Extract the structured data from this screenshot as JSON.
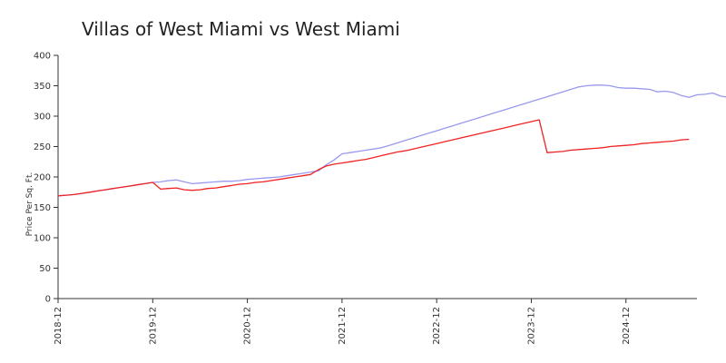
{
  "chart_data": {
    "type": "line",
    "title": "Villas of West Miami vs West Miami",
    "xlabel": "",
    "ylabel": "Price Per Sq. Ft.",
    "ylim": [
      0,
      400
    ],
    "yticks": [
      0,
      50,
      100,
      150,
      200,
      250,
      300,
      350,
      400
    ],
    "xticks": [
      "2018-12",
      "2019-12",
      "2020-12",
      "2021-12",
      "2022-12",
      "2023-12",
      "2024-12"
    ],
    "x_start": "2018-12",
    "x_end": "2025-09",
    "grid": false,
    "legend": "none",
    "series": [
      {
        "color": "#9999ee",
        "values": [
          [
            0,
            169
          ],
          [
            1,
            170
          ],
          [
            2,
            171
          ],
          [
            3,
            173
          ],
          [
            4,
            175
          ],
          [
            5,
            177
          ],
          [
            6,
            179
          ],
          [
            7,
            181
          ],
          [
            8,
            183
          ],
          [
            9,
            185
          ],
          [
            10,
            187
          ],
          [
            11,
            189
          ],
          [
            12,
            191
          ],
          [
            13,
            192
          ],
          [
            14,
            194
          ],
          [
            15,
            195
          ],
          [
            16,
            192
          ],
          [
            17,
            189
          ],
          [
            18,
            190
          ],
          [
            19,
            191
          ],
          [
            20,
            192
          ],
          [
            21,
            193
          ],
          [
            22,
            193
          ],
          [
            23,
            194
          ],
          [
            24,
            196
          ],
          [
            25,
            197
          ],
          [
            26,
            198
          ],
          [
            27,
            199
          ],
          [
            28,
            200
          ],
          [
            29,
            202
          ],
          [
            30,
            204
          ],
          [
            31,
            206
          ],
          [
            32,
            208
          ],
          [
            33,
            210
          ],
          [
            34,
            220
          ],
          [
            35,
            228
          ],
          [
            36,
            238
          ],
          [
            37,
            240
          ],
          [
            38,
            242
          ],
          [
            39,
            244
          ],
          [
            40,
            246
          ],
          [
            41,
            248
          ],
          [
            42,
            252
          ],
          [
            43,
            256
          ],
          [
            44,
            260
          ],
          [
            45,
            264
          ],
          [
            46,
            268
          ],
          [
            47,
            272
          ],
          [
            48,
            276
          ],
          [
            49,
            280
          ],
          [
            50,
            284
          ],
          [
            51,
            288
          ],
          [
            52,
            292
          ],
          [
            53,
            296
          ],
          [
            54,
            300
          ],
          [
            55,
            304
          ],
          [
            56,
            308
          ],
          [
            57,
            312
          ],
          [
            58,
            316
          ],
          [
            59,
            320
          ],
          [
            60,
            324
          ],
          [
            61,
            328
          ],
          [
            62,
            332
          ],
          [
            63,
            336
          ],
          [
            64,
            340
          ],
          [
            65,
            344
          ],
          [
            66,
            348
          ],
          [
            67,
            350
          ],
          [
            68,
            351
          ],
          [
            69,
            351
          ],
          [
            70,
            350
          ],
          [
            71,
            347
          ],
          [
            72,
            346
          ],
          [
            73,
            346
          ],
          [
            74,
            345
          ],
          [
            75,
            344
          ],
          [
            76,
            340
          ],
          [
            77,
            341
          ],
          [
            78,
            339
          ],
          [
            79,
            334
          ],
          [
            80,
            331
          ],
          [
            81,
            335
          ],
          [
            82,
            336
          ],
          [
            83,
            338
          ],
          [
            84,
            333
          ],
          [
            85,
            331
          ]
        ]
      },
      {
        "color": "#ee2222",
        "values": [
          [
            0,
            169
          ],
          [
            1,
            170
          ],
          [
            2,
            171
          ],
          [
            3,
            173
          ],
          [
            4,
            175
          ],
          [
            5,
            177
          ],
          [
            6,
            179
          ],
          [
            7,
            181
          ],
          [
            8,
            183
          ],
          [
            9,
            185
          ],
          [
            10,
            187
          ],
          [
            11,
            189
          ],
          [
            12,
            191
          ],
          [
            13,
            180
          ],
          [
            14,
            181
          ],
          [
            15,
            182
          ],
          [
            16,
            179
          ],
          [
            17,
            178
          ],
          [
            18,
            179
          ],
          [
            19,
            181
          ],
          [
            20,
            182
          ],
          [
            21,
            184
          ],
          [
            22,
            186
          ],
          [
            23,
            188
          ],
          [
            24,
            189
          ],
          [
            25,
            191
          ],
          [
            26,
            192
          ],
          [
            27,
            194
          ],
          [
            28,
            196
          ],
          [
            29,
            198
          ],
          [
            30,
            200
          ],
          [
            31,
            202
          ],
          [
            32,
            204
          ],
          [
            33,
            212
          ],
          [
            34,
            218
          ],
          [
            35,
            221
          ],
          [
            36,
            223
          ],
          [
            37,
            225
          ],
          [
            38,
            227
          ],
          [
            39,
            229
          ],
          [
            40,
            232
          ],
          [
            41,
            235
          ],
          [
            42,
            238
          ],
          [
            43,
            241
          ],
          [
            44,
            243
          ],
          [
            45,
            246
          ],
          [
            46,
            249
          ],
          [
            47,
            252
          ],
          [
            48,
            255
          ],
          [
            49,
            258
          ],
          [
            50,
            261
          ],
          [
            51,
            264
          ],
          [
            52,
            267
          ],
          [
            53,
            270
          ],
          [
            54,
            273
          ],
          [
            55,
            276
          ],
          [
            56,
            279
          ],
          [
            57,
            282
          ],
          [
            58,
            285
          ],
          [
            59,
            288
          ],
          [
            60,
            291
          ],
          [
            61,
            294
          ],
          [
            62,
            240
          ],
          [
            63,
            241
          ],
          [
            64,
            242
          ],
          [
            65,
            244
          ],
          [
            66,
            245
          ],
          [
            67,
            246
          ],
          [
            68,
            247
          ],
          [
            69,
            248
          ],
          [
            70,
            250
          ],
          [
            71,
            251
          ],
          [
            72,
            252
          ],
          [
            73,
            253
          ],
          [
            74,
            255
          ],
          [
            75,
            256
          ],
          [
            76,
            257
          ],
          [
            77,
            258
          ],
          [
            78,
            259
          ],
          [
            79,
            261
          ],
          [
            80,
            262
          ]
        ]
      }
    ]
  }
}
